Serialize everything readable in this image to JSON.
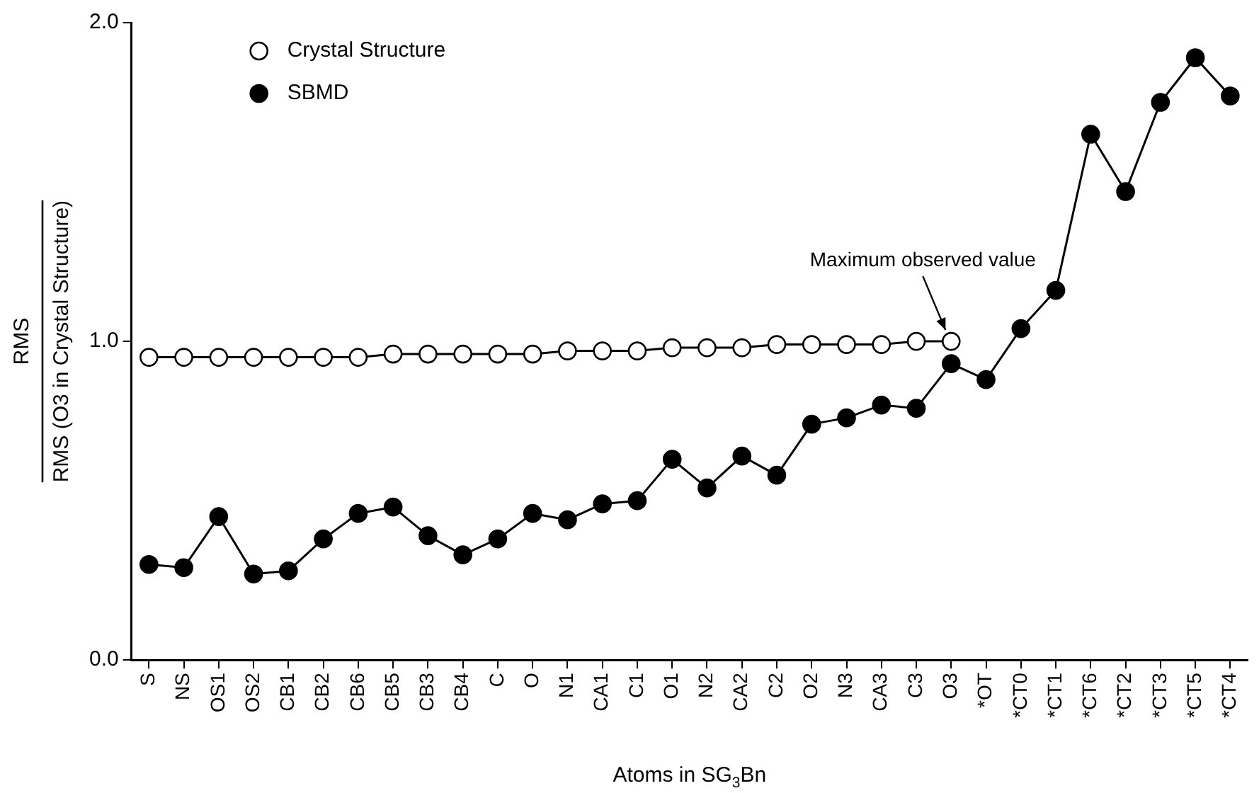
{
  "chart_data": {
    "type": "line",
    "xlabel": "Atoms in SG$_{3}$Bn",
    "ylabel": "RMS\nRMS (O3 in Crystal Structure)",
    "categories": [
      "S",
      "NS",
      "OS1",
      "OS2",
      "CB1",
      "CB2",
      "CB6",
      "CB5",
      "CB3",
      "CB4",
      "C",
      "O",
      "N1",
      "CA1",
      "C1",
      "O1",
      "N2",
      "CA2",
      "C2",
      "O2",
      "N3",
      "CA3",
      "C3",
      "O3",
      "*OT",
      "*CT0",
      "*CT1",
      "*CT6",
      "*CT2",
      "*CT3",
      "*CT5",
      "*CT4"
    ],
    "series": [
      {
        "name": "Crystal Structure",
        "color": "#ffffff",
        "values": [
          0.95,
          0.95,
          0.95,
          0.95,
          0.95,
          0.95,
          0.95,
          0.96,
          0.96,
          0.96,
          0.96,
          0.96,
          0.97,
          0.97,
          0.97,
          0.98,
          0.98,
          0.98,
          0.99,
          0.99,
          0.99,
          0.99,
          1.0,
          1.0,
          null,
          null,
          null,
          null,
          null,
          null,
          null,
          null
        ]
      },
      {
        "name": "SBMD",
        "color": "#000000",
        "values": [
          0.3,
          0.29,
          0.45,
          0.27,
          0.28,
          0.38,
          0.46,
          0.48,
          0.39,
          0.33,
          0.38,
          0.46,
          0.44,
          0.49,
          0.5,
          0.63,
          0.54,
          0.64,
          0.58,
          0.74,
          0.76,
          0.8,
          0.79,
          0.93,
          0.88,
          1.04,
          1.16,
          1.65,
          1.47,
          1.75,
          1.89,
          1.77
        ]
      }
    ],
    "ylim": [
      0,
      2
    ],
    "yticks": [
      {
        "value": 0,
        "label": "0.0"
      },
      {
        "value": 1,
        "label": "1.0"
      },
      {
        "value": 2,
        "label": "2.0"
      }
    ],
    "annotations": [
      {
        "text": "Maximum observed value",
        "x": "O3",
        "y": 1.0
      }
    ],
    "grid": false,
    "legend": "top left",
    "marker": "circle",
    "line_style": "solid"
  }
}
